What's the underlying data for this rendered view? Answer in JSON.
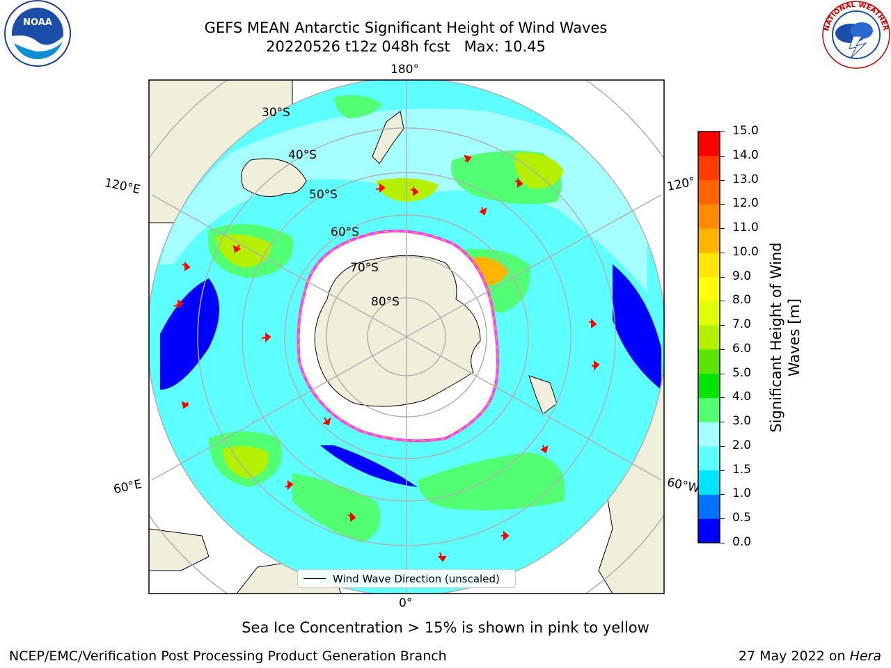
{
  "title": {
    "line1": "GEFS MEAN Antarctic Significant Height of Wind Waves",
    "line2": "20220526 t12z 048h fcst   Max: 10.45"
  },
  "logos": {
    "left": "NOAA",
    "right": "NATIONAL WEATHER SERVICE"
  },
  "map": {
    "lon_labels": [
      "180°",
      "120°E",
      "120°",
      "60°E",
      "60°W",
      "0°"
    ],
    "lat_labels": [
      "30°S",
      "40°S",
      "50°S",
      "60°S",
      "70°S",
      "80°S"
    ],
    "legend": "Wind Wave Direction (unscaled)"
  },
  "colorbar": {
    "label": "Significant Height of Wind Waves [m]",
    "ticks": [
      "15.0",
      "14.0",
      "13.0",
      "12.0",
      "11.0",
      "10.0",
      "9.0",
      "8.0",
      "7.0",
      "6.0",
      "5.0",
      "4.0",
      "3.0",
      "2.0",
      "1.5",
      "1.0",
      "0.5",
      "0.0"
    ],
    "colors": [
      "#0000ff",
      "#0073ff",
      "#00e5ff",
      "#5effff",
      "#a6ffff",
      "#52ff73",
      "#00e600",
      "#5ae600",
      "#b4f000",
      "#e1ff00",
      "#ffff00",
      "#ffe600",
      "#ffb400",
      "#ff8c00",
      "#ff6400",
      "#ff3c00",
      "#ff0000"
    ]
  },
  "notes": {
    "sea_ice": "Sea Ice Concentration > 15% is shown in pink to yellow",
    "branch": "NCEP/EMC/Verification Post Processing Product Generation Branch",
    "date": "27 May 2022 on",
    "host": "Hera"
  }
}
